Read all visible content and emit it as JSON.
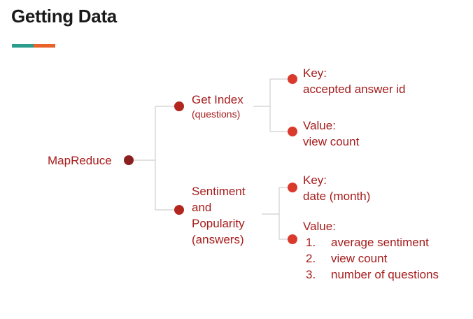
{
  "page": {
    "title": "Getting Data"
  },
  "colors": {
    "accent_teal": "#2a9d8f",
    "accent_orange": "#e8632a",
    "text_red": "#a61c1c",
    "node_dark": "#8b1e1e",
    "node_mid": "#b3261e",
    "node_bright": "#d93a2b",
    "connector": "#cfcfcf"
  },
  "diagram": {
    "root": {
      "label": "MapReduce"
    },
    "get_index": {
      "label": "Get Index",
      "sublabel": "(questions)",
      "key": {
        "heading": "Key:",
        "value": "accepted answer id"
      },
      "value": {
        "heading": "Value:",
        "value": "view count"
      }
    },
    "sentiment": {
      "label_lines": [
        "Sentiment",
        "and",
        "Popularity",
        "(answers)"
      ],
      "key": {
        "heading": "Key:",
        "value": "date (month)"
      },
      "value": {
        "heading": "Value:",
        "items": [
          {
            "num": "1.",
            "text": "average sentiment"
          },
          {
            "num": "2.",
            "text": "view count"
          },
          {
            "num": "3.",
            "text": "number of questions"
          }
        ]
      }
    }
  }
}
